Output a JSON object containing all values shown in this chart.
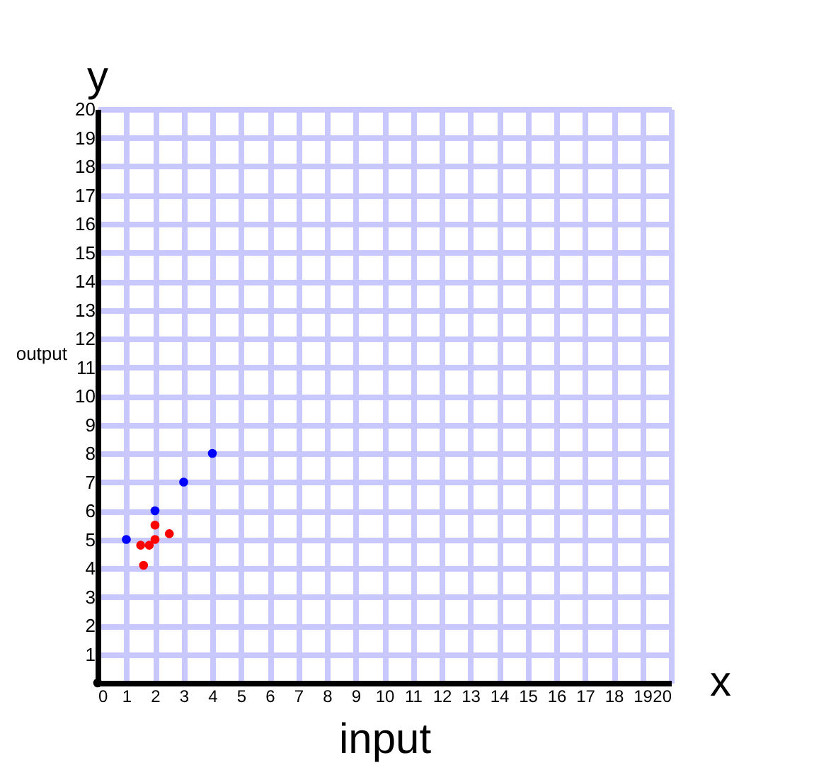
{
  "chart_data": {
    "type": "scatter",
    "xlabel": "input",
    "ylabel": "output",
    "xlim": [
      0,
      20
    ],
    "ylim": [
      0,
      20
    ],
    "xticks": [
      0,
      1,
      2,
      3,
      4,
      5,
      6,
      7,
      8,
      9,
      10,
      11,
      12,
      13,
      14,
      15,
      16,
      17,
      18,
      19,
      20
    ],
    "yticks": [
      1,
      2,
      3,
      4,
      5,
      6,
      7,
      8,
      9,
      10,
      11,
      12,
      13,
      14,
      15,
      16,
      17,
      18,
      19,
      20
    ],
    "grid": true,
    "legend": false,
    "marker": "circle",
    "annotations": [
      "y",
      "x"
    ],
    "series": [
      {
        "color": "#000000",
        "x": [
          0
        ],
        "values": [
          0
        ]
      },
      {
        "color": "#0000ff",
        "x": [
          1,
          2,
          3,
          4
        ],
        "values": [
          5,
          6,
          7,
          8
        ]
      },
      {
        "color": "#ff0000",
        "x": [
          1.6,
          1.5,
          1.8,
          2,
          2,
          2.5
        ],
        "values": [
          4.1,
          4.8,
          4.8,
          5,
          5.5,
          5.2
        ]
      }
    ]
  }
}
